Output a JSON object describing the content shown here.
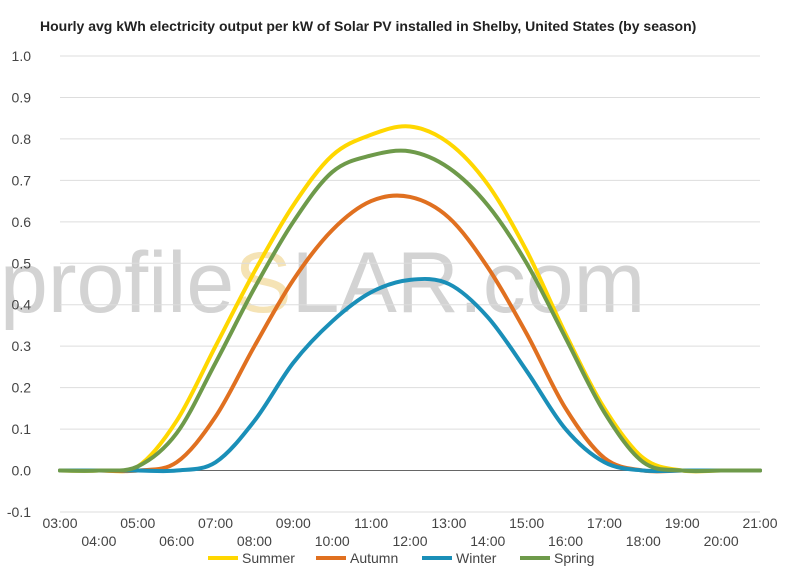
{
  "watermark": {
    "left": "profile",
    "mid": "S",
    "right": "LAR.com"
  },
  "chart_data": {
    "type": "line",
    "title": "Hourly avg kWh electricity output per kW of Solar PV installed in Shelby, United States (by season)",
    "xlabel": "",
    "ylabel": "",
    "ylim": [
      -0.1,
      1.0
    ],
    "yticks": [
      -0.1,
      0.0,
      0.1,
      0.2,
      0.3,
      0.4,
      0.5,
      0.6,
      0.7,
      0.8,
      0.9,
      1.0
    ],
    "ytick_labels": [
      "-0.1",
      "0.0",
      "0.1",
      "0.2",
      "0.3",
      "0.4",
      "0.5",
      "0.6",
      "0.7",
      "0.8",
      "0.9",
      "1.0"
    ],
    "xlim": [
      3,
      21
    ],
    "x": [
      3,
      4,
      5,
      6,
      7,
      8,
      9,
      10,
      11,
      12,
      13,
      14,
      15,
      16,
      17,
      18,
      19,
      20,
      21
    ],
    "xtick_labels": [
      "03:00",
      "04:00",
      "05:00",
      "06:00",
      "07:00",
      "08:00",
      "09:00",
      "10:00",
      "11:00",
      "12:00",
      "13:00",
      "14:00",
      "15:00",
      "16:00",
      "17:00",
      "18:00",
      "19:00",
      "20:00",
      "21:00"
    ],
    "grid": true,
    "legend_position": "bottom",
    "series": [
      {
        "name": "Summer",
        "color": "#ffd700",
        "values": [
          0.0,
          0.0,
          0.01,
          0.12,
          0.3,
          0.48,
          0.64,
          0.76,
          0.81,
          0.83,
          0.79,
          0.69,
          0.53,
          0.33,
          0.15,
          0.03,
          0.0,
          0.0,
          0.0
        ]
      },
      {
        "name": "Autumn",
        "color": "#e07020",
        "values": [
          0.0,
          0.0,
          0.0,
          0.02,
          0.13,
          0.3,
          0.46,
          0.58,
          0.65,
          0.66,
          0.61,
          0.49,
          0.33,
          0.15,
          0.03,
          0.0,
          0.0,
          0.0,
          0.0
        ]
      },
      {
        "name": "Winter",
        "color": "#1a8fb8",
        "values": [
          0.0,
          0.0,
          0.0,
          0.0,
          0.02,
          0.12,
          0.26,
          0.36,
          0.43,
          0.46,
          0.45,
          0.37,
          0.24,
          0.1,
          0.02,
          0.0,
          0.0,
          0.0,
          0.0
        ]
      },
      {
        "name": "Spring",
        "color": "#6e9a4a",
        "values": [
          0.0,
          0.0,
          0.01,
          0.09,
          0.26,
          0.44,
          0.6,
          0.72,
          0.76,
          0.77,
          0.73,
          0.64,
          0.5,
          0.32,
          0.14,
          0.02,
          0.0,
          0.0,
          0.0
        ]
      }
    ]
  }
}
